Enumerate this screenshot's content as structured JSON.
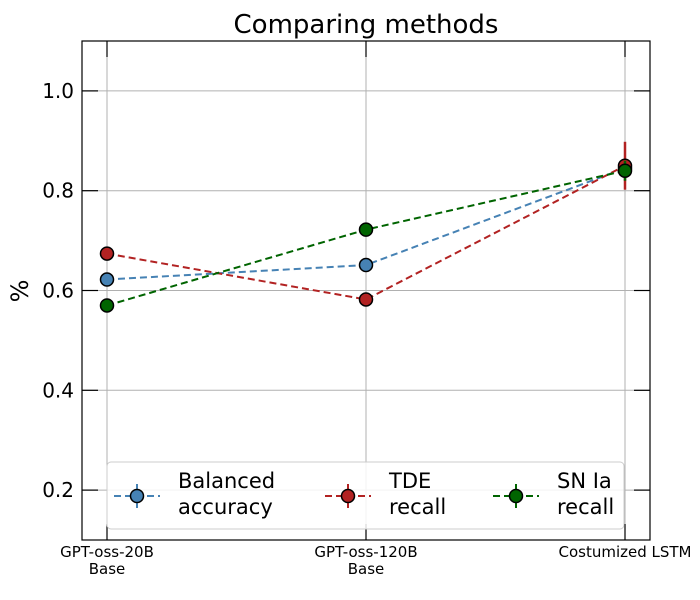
{
  "chart_data": {
    "type": "line",
    "title": "Comparing methods",
    "xlabel": "",
    "ylabel": "%",
    "categories": [
      "GPT-oss-20B\nBase",
      "GPT-oss-120B\nBase",
      "Costumized LSTM"
    ],
    "ylim": [
      0.1,
      1.1
    ],
    "yticks": [
      0.2,
      0.4,
      0.6,
      0.8,
      1.0
    ],
    "ytick_labels": [
      "0.2",
      "0.4",
      "0.6",
      "0.8",
      "1.0"
    ],
    "grid": true,
    "legend_position": "bottom",
    "series": [
      {
        "name": "Balanced\naccuracy",
        "values": [
          0.622,
          0.651,
          0.845
        ],
        "errors": [
          0.005,
          0.005,
          0.01
        ],
        "color": "#4682b4"
      },
      {
        "name": "TDE\nrecall",
        "values": [
          0.674,
          0.582,
          0.85
        ],
        "errors": [
          0.005,
          0.01,
          0.048
        ],
        "color": "#b22222"
      },
      {
        "name": "SN Ia\nrecall",
        "values": [
          0.57,
          0.722,
          0.84
        ],
        "errors": [
          0.005,
          0.005,
          0.02
        ],
        "color": "#006400"
      }
    ]
  }
}
